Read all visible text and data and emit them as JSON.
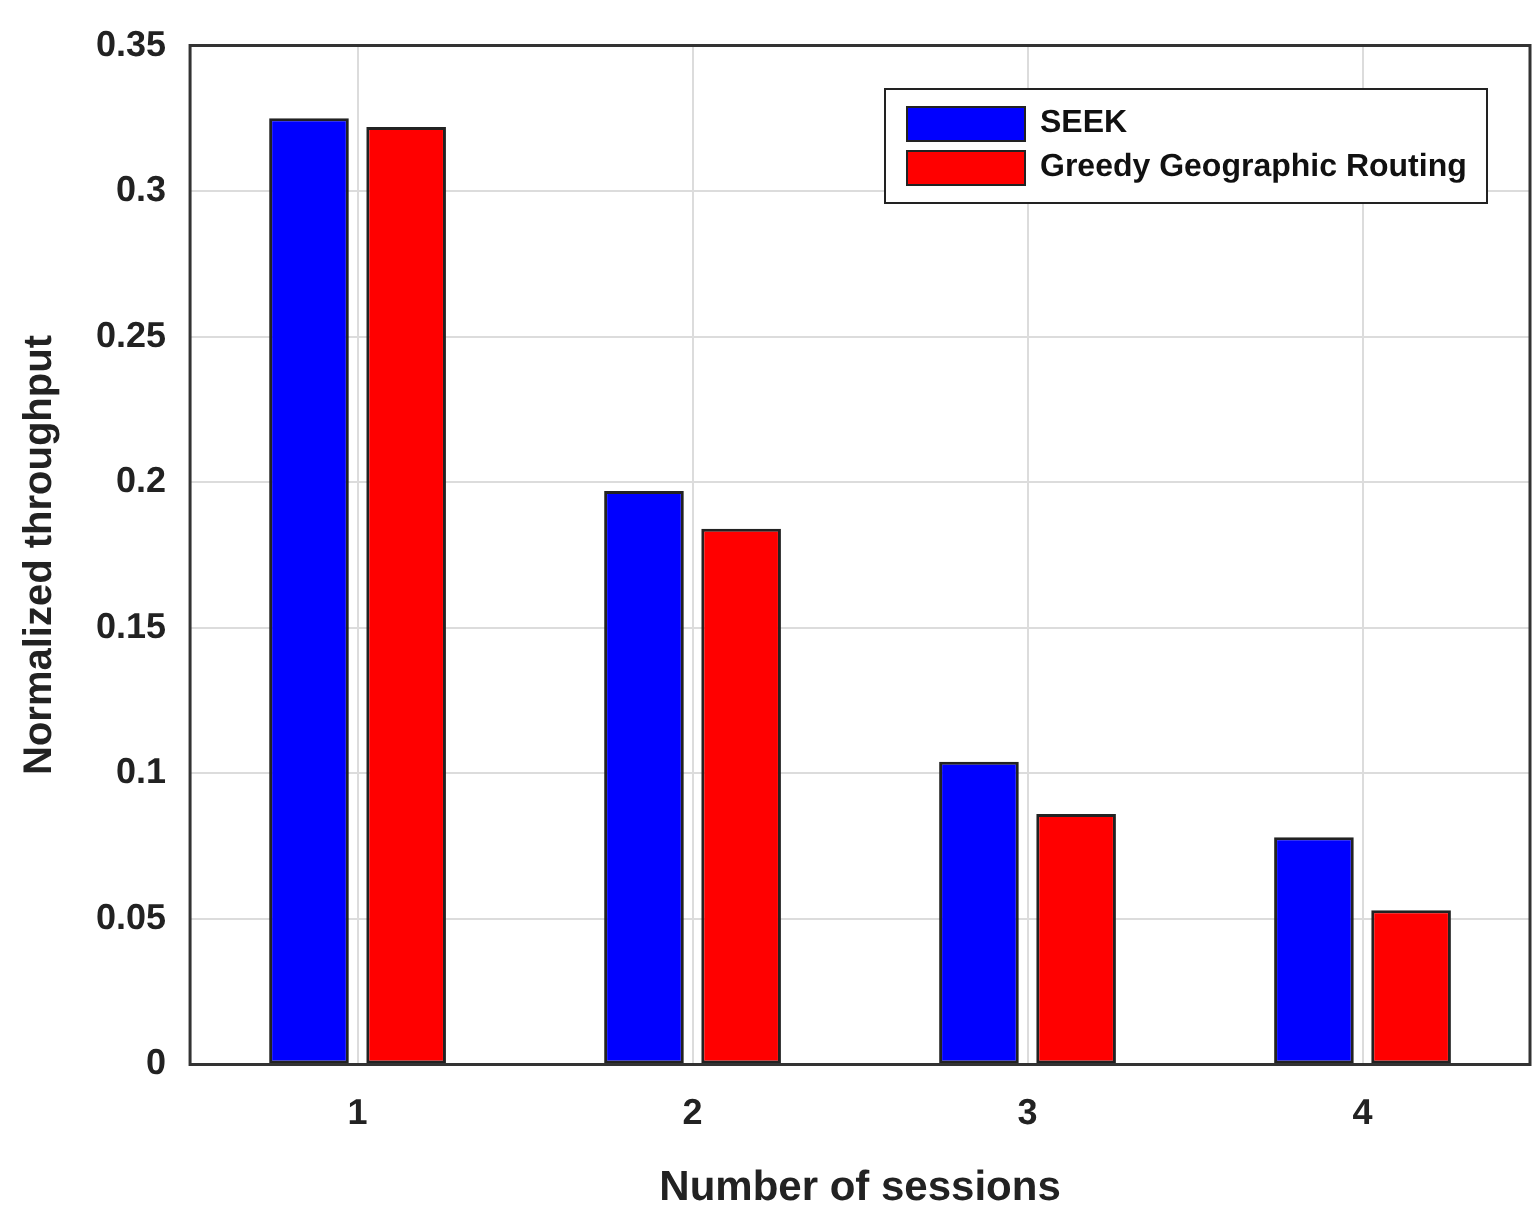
{
  "chart_data": {
    "type": "bar",
    "xlabel": "Number of sessions",
    "ylabel": "Normalized throughput",
    "categories": [
      "1",
      "2",
      "3",
      "4"
    ],
    "series": [
      {
        "name": "SEEK",
        "color": "#0000ff",
        "values": [
          0.325,
          0.197,
          0.104,
          0.078
        ]
      },
      {
        "name": "Greedy Geographic Routing",
        "color": "#ff0000",
        "values": [
          0.322,
          0.184,
          0.086,
          0.053
        ]
      }
    ],
    "ylim": [
      0,
      0.35
    ],
    "yticks": [
      0,
      0.05,
      0.1,
      0.15,
      0.2,
      0.25,
      0.3,
      0.35
    ],
    "grid": true,
    "legend": "top right"
  }
}
